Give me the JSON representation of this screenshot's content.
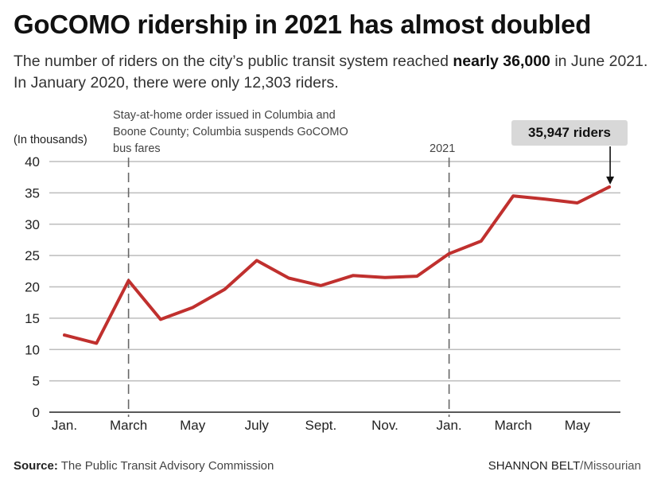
{
  "header": {
    "title": "GoCOMO ridership in 2021 has almost doubled",
    "subtitle_part1": "The number of riders on the city’s public transit system reached ",
    "subtitle_bold": "nearly 36,000",
    "subtitle_part2": " in June 2021. In January 2020, there were only 12,303 riders."
  },
  "chart_data": {
    "type": "line",
    "ylabel": "(In thousands)",
    "ylim": [
      0,
      40
    ],
    "yticks": [
      0,
      5,
      10,
      15,
      20,
      25,
      30,
      35,
      40
    ],
    "x": [
      "2020-01",
      "2020-02",
      "2020-03",
      "2020-04",
      "2020-05",
      "2020-06",
      "2020-07",
      "2020-08",
      "2020-09",
      "2020-10",
      "2020-11",
      "2020-12",
      "2021-01",
      "2021-02",
      "2021-03",
      "2021-04",
      "2021-05",
      "2021-06"
    ],
    "xtick_labels": [
      "Jan.",
      "",
      "March",
      "",
      "May",
      "",
      "July",
      "",
      "Sept.",
      "",
      "Nov.",
      "",
      "Jan.",
      "",
      "March",
      "",
      "May",
      ""
    ],
    "series": [
      {
        "values": [
          12.303,
          11.0,
          21.0,
          14.8,
          16.7,
          19.6,
          24.2,
          21.4,
          20.2,
          21.8,
          21.5,
          21.7,
          25.3,
          27.3,
          34.5,
          34.0,
          33.4,
          35.947
        ],
        "color": "#c0302e"
      }
    ],
    "grid": true,
    "annotations": [
      {
        "x": "2020-03",
        "text": "Stay-at-home order issued in Columbia and Boone County; Columbia suspends GoCOMO bus fares",
        "style": "dashed-vline"
      },
      {
        "x": "2021-01",
        "text": "2021",
        "style": "dashed-vline"
      },
      {
        "x": "2021-06",
        "text": "35,947 riders",
        "style": "callout-arrow"
      }
    ]
  },
  "footer": {
    "source_label": "Source:",
    "source_text": " The Public Transit Advisory Commission",
    "credit_name": "SHANNON BELT",
    "credit_pub": "/Missourian"
  },
  "colors": {
    "line": "#c0302e",
    "grid": "#bdbdbd",
    "callout_bg": "#d8d8d8"
  }
}
